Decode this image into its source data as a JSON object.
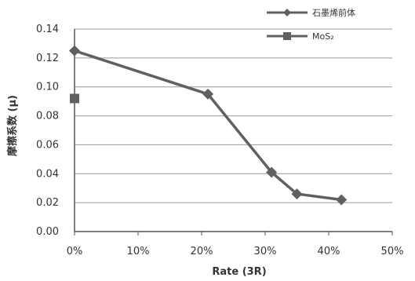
{
  "chart_data": {
    "type": "line",
    "xlabel": "Rate (3R)",
    "ylabel": "摩擦系数 (μ)",
    "xlim": [
      0,
      50
    ],
    "ylim": [
      0,
      0.14
    ],
    "x_ticks": [
      "0%",
      "10%",
      "20%",
      "30%",
      "40%",
      "50%"
    ],
    "y_ticks": [
      "0.00",
      "0.02",
      "0.04",
      "0.06",
      "0.08",
      "0.10",
      "0.12",
      "0.14"
    ],
    "grid": true,
    "legend_position": "top-right",
    "series": [
      {
        "name": "石墨烯前体",
        "marker": "diamond",
        "color": "#606060",
        "points": [
          {
            "x": 0,
            "y": 0.125
          },
          {
            "x": 21,
            "y": 0.095
          },
          {
            "x": 31,
            "y": 0.041
          },
          {
            "x": 35,
            "y": 0.026
          },
          {
            "x": 42,
            "y": 0.022
          }
        ]
      },
      {
        "name": "MoS2",
        "name_display": "MoS₂",
        "marker": "square",
        "color": "#606060",
        "points": [
          {
            "x": 0,
            "y": 0.092
          }
        ]
      }
    ]
  }
}
